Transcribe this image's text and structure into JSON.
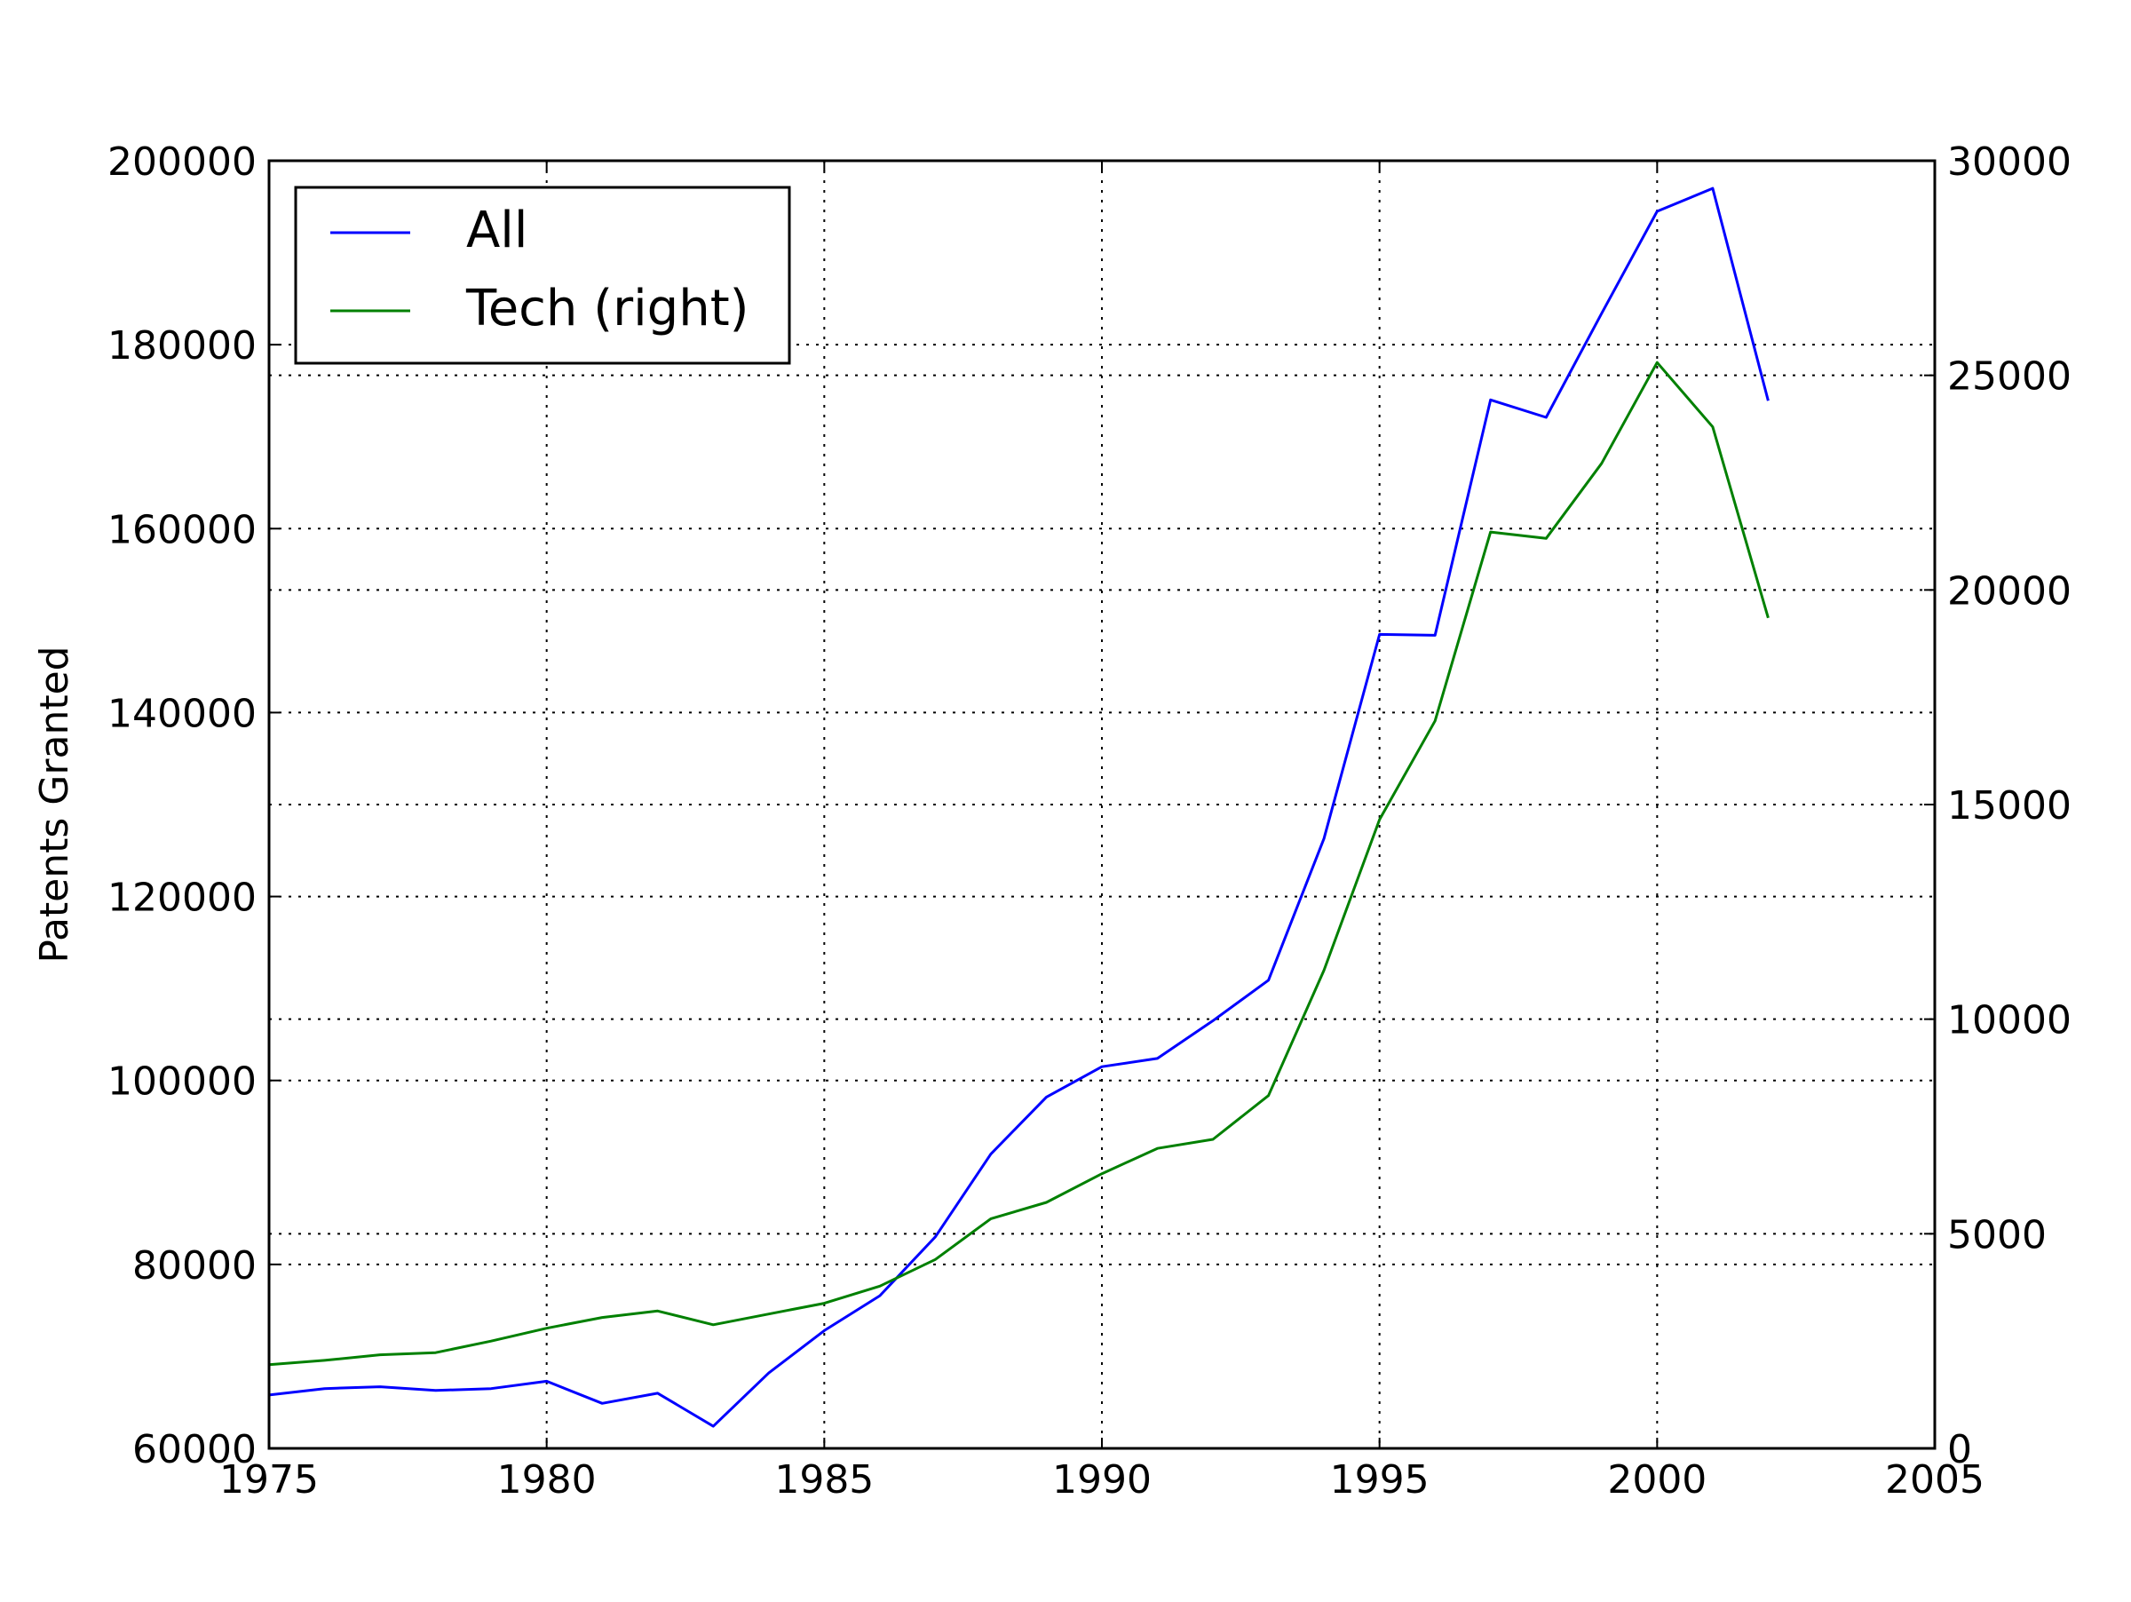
{
  "chart_data": {
    "type": "line",
    "title": "",
    "xlabel": "",
    "ylabel": "Patents Granted",
    "y2label": "",
    "xlim": [
      1975,
      2005
    ],
    "ylim": [
      60000,
      200000
    ],
    "y2lim": [
      0,
      30000
    ],
    "xticks": [
      "1975",
      "1980",
      "1985",
      "1990",
      "1995",
      "2000",
      "2005"
    ],
    "yticks": [
      "60000",
      "80000",
      "100000",
      "120000",
      "140000",
      "160000",
      "180000",
      "200000"
    ],
    "y2ticks": [
      "0",
      "5000",
      "10000",
      "15000",
      "20000",
      "25000",
      "30000"
    ],
    "grid": true,
    "legend_position": "upper-left",
    "x": [
      1975,
      1976,
      1977,
      1978,
      1979,
      1980,
      1981,
      1982,
      1983,
      1984,
      1985,
      1986,
      1987,
      1988,
      1989,
      1990,
      1991,
      1992,
      1993,
      1994,
      1995,
      1996,
      1997,
      1998,
      1999,
      2000,
      2001,
      2002
    ],
    "series": [
      {
        "name": "All",
        "axis": "left",
        "color": "#0000ff",
        "values": [
          65800,
          66500,
          66700,
          66300,
          66500,
          67300,
          64900,
          66000,
          62400,
          68200,
          72800,
          76600,
          83000,
          92000,
          98200,
          101500,
          102400,
          106500,
          110900,
          126300,
          148500,
          148400,
          174000,
          172100,
          183400,
          194500,
          197000,
          173900
        ]
      },
      {
        "name": "Tech (right)",
        "axis": "right",
        "color": "#008000",
        "values": [
          1950,
          2050,
          2180,
          2230,
          2500,
          2800,
          3050,
          3200,
          2880,
          3130,
          3380,
          3780,
          4400,
          5350,
          5730,
          6400,
          6990,
          7200,
          8220,
          11140,
          14650,
          16950,
          21350,
          21200,
          22950,
          25300,
          23800,
          19350
        ]
      }
    ]
  }
}
